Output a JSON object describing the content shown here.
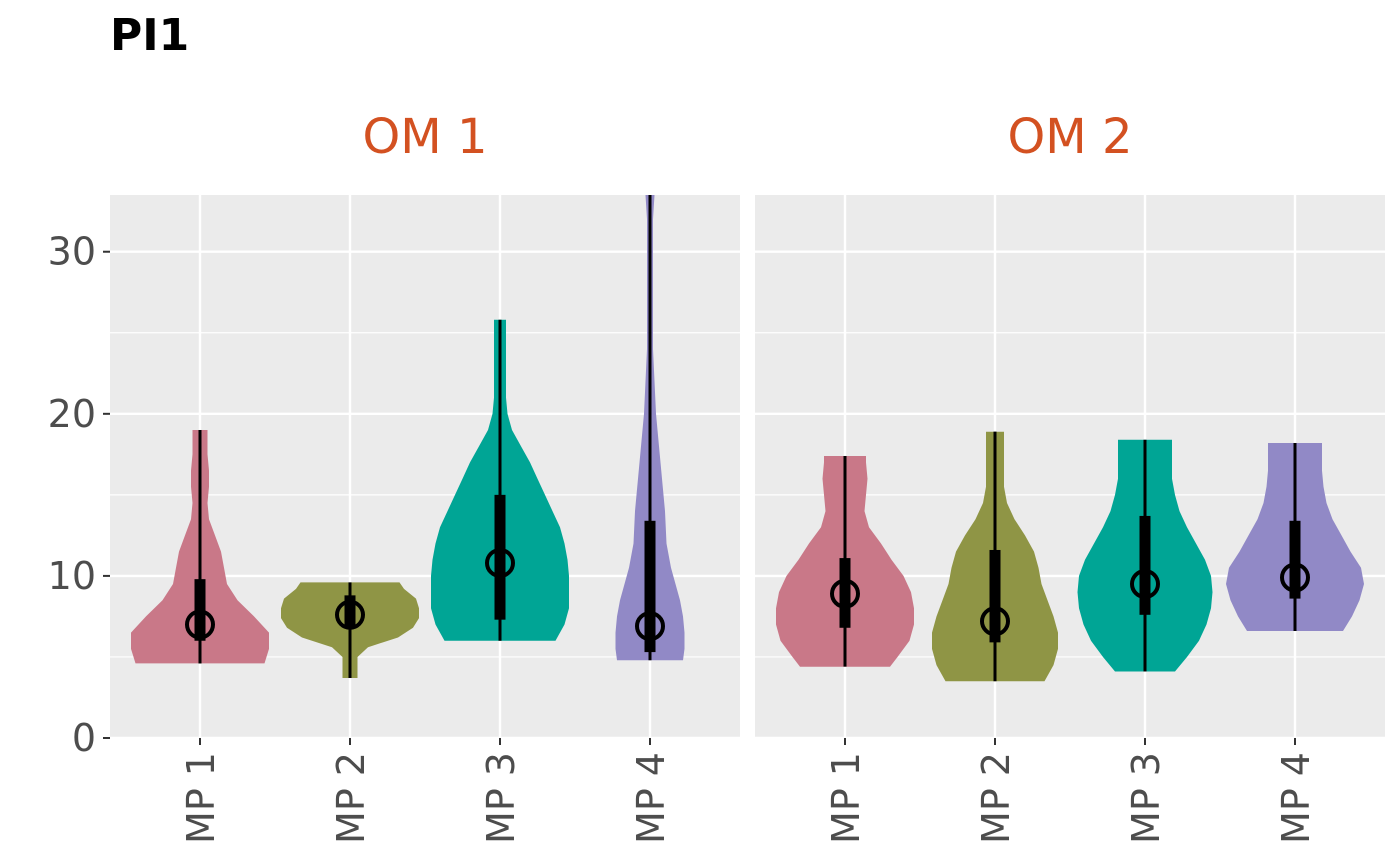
{
  "chart_data": {
    "type": "violin",
    "title": "PI1",
    "xlabel": "",
    "ylabel": "",
    "ylim": [
      0,
      33.5
    ],
    "yticks": [
      0,
      10,
      20,
      30
    ],
    "grid": true,
    "categories": [
      "MP 1",
      "MP 2",
      "MP 3",
      "MP 4"
    ],
    "colors": {
      "MP 1": "#c97888",
      "MP 2": "#8f9545",
      "MP 3": "#00a595",
      "MP 4": "#9189c6",
      "strip_text": "#d35121",
      "panel_bg": "#ebebeb"
    },
    "panels": [
      {
        "name": "OM 1",
        "violins": [
          {
            "category": "MP 1",
            "min": 4.6,
            "max": 19.0,
            "q1": 6.0,
            "median": 7.0,
            "q3": 9.8,
            "profile": [
              [
                4.6,
                4.3
              ],
              [
                5.5,
                4.6
              ],
              [
                6.5,
                4.6
              ],
              [
                7.5,
                3.6
              ],
              [
                8.5,
                2.5
              ],
              [
                9.5,
                1.8
              ],
              [
                10.5,
                1.6
              ],
              [
                11.5,
                1.4
              ],
              [
                12.5,
                1.0
              ],
              [
                13.5,
                0.6
              ],
              [
                14.5,
                0.5
              ],
              [
                15.5,
                0.6
              ],
              [
                16.5,
                0.6
              ],
              [
                17.5,
                0.5
              ],
              [
                18.5,
                0.5
              ],
              [
                19.0,
                0.5
              ]
            ]
          },
          {
            "category": "MP 2",
            "min": 3.7,
            "max": 9.6,
            "q1": 6.8,
            "median": 7.6,
            "q3": 8.8,
            "profile": [
              [
                3.7,
                0.5
              ],
              [
                4.4,
                0.5
              ],
              [
                5.0,
                0.5
              ],
              [
                5.6,
                1.2
              ],
              [
                6.2,
                3.2
              ],
              [
                6.8,
                4.2
              ],
              [
                7.4,
                4.6
              ],
              [
                8.0,
                4.6
              ],
              [
                8.6,
                4.4
              ],
              [
                9.2,
                3.6
              ],
              [
                9.6,
                3.3
              ]
            ]
          },
          {
            "category": "MP 3",
            "min": 6.0,
            "max": 25.8,
            "q1": 7.3,
            "median": 10.8,
            "q3": 15.0,
            "profile": [
              [
                6.0,
                3.7
              ],
              [
                7.0,
                4.3
              ],
              [
                8.0,
                4.6
              ],
              [
                9.0,
                4.6
              ],
              [
                10.0,
                4.6
              ],
              [
                11.0,
                4.5
              ],
              [
                12.0,
                4.3
              ],
              [
                13.0,
                4.0
              ],
              [
                14.0,
                3.5
              ],
              [
                15.0,
                3.0
              ],
              [
                16.0,
                2.5
              ],
              [
                17.0,
                2.0
              ],
              [
                18.0,
                1.4
              ],
              [
                19.0,
                0.8
              ],
              [
                20.0,
                0.5
              ],
              [
                21.0,
                0.4
              ],
              [
                22.0,
                0.4
              ],
              [
                23.0,
                0.4
              ],
              [
                24.0,
                0.4
              ],
              [
                25.0,
                0.4
              ],
              [
                25.8,
                0.4
              ]
            ]
          },
          {
            "category": "MP 4",
            "min": 4.8,
            "max": 33.5,
            "q1": 5.3,
            "median": 6.9,
            "q3": 13.4,
            "profile": [
              [
                4.8,
                2.2
              ],
              [
                5.5,
                2.3
              ],
              [
                6.5,
                2.3
              ],
              [
                7.5,
                2.2
              ],
              [
                8.5,
                2.0
              ],
              [
                9.5,
                1.7
              ],
              [
                10.5,
                1.4
              ],
              [
                12.0,
                1.1
              ],
              [
                14.0,
                1.0
              ],
              [
                16.0,
                0.8
              ],
              [
                18.0,
                0.6
              ],
              [
                20.0,
                0.4
              ],
              [
                22.0,
                0.3
              ],
              [
                24.0,
                0.2
              ],
              [
                26.0,
                0.2
              ],
              [
                28.0,
                0.2
              ],
              [
                30.0,
                0.2
              ],
              [
                32.0,
                0.2
              ],
              [
                33.5,
                0.3
              ]
            ]
          }
        ]
      },
      {
        "name": "OM 2",
        "violins": [
          {
            "category": "MP 1",
            "min": 4.4,
            "max": 17.4,
            "q1": 6.8,
            "median": 8.9,
            "q3": 11.1,
            "profile": [
              [
                4.4,
                3.0
              ],
              [
                5.0,
                3.5
              ],
              [
                6.0,
                4.3
              ],
              [
                7.0,
                4.6
              ],
              [
                8.0,
                4.6
              ],
              [
                9.0,
                4.4
              ],
              [
                10.0,
                3.9
              ],
              [
                11.0,
                3.1
              ],
              [
                12.0,
                2.4
              ],
              [
                13.0,
                1.6
              ],
              [
                14.0,
                1.3
              ],
              [
                15.0,
                1.4
              ],
              [
                16.0,
                1.5
              ],
              [
                17.0,
                1.4
              ],
              [
                17.4,
                1.4
              ]
            ]
          },
          {
            "category": "MP 2",
            "min": 3.5,
            "max": 18.9,
            "q1": 5.9,
            "median": 7.2,
            "q3": 11.6,
            "profile": [
              [
                3.5,
                3.3
              ],
              [
                4.5,
                3.9
              ],
              [
                5.5,
                4.2
              ],
              [
                6.5,
                4.2
              ],
              [
                7.5,
                3.9
              ],
              [
                8.5,
                3.5
              ],
              [
                9.5,
                3.1
              ],
              [
                10.5,
                2.9
              ],
              [
                11.5,
                2.6
              ],
              [
                12.5,
                2.0
              ],
              [
                13.5,
                1.3
              ],
              [
                14.5,
                0.8
              ],
              [
                15.5,
                0.6
              ],
              [
                16.5,
                0.6
              ],
              [
                17.5,
                0.6
              ],
              [
                18.5,
                0.6
              ],
              [
                18.9,
                0.6
              ]
            ]
          },
          {
            "category": "MP 3",
            "min": 4.1,
            "max": 18.4,
            "q1": 7.6,
            "median": 9.5,
            "q3": 13.7,
            "profile": [
              [
                4.1,
                2.0
              ],
              [
                5.0,
                2.8
              ],
              [
                6.0,
                3.6
              ],
              [
                7.0,
                4.1
              ],
              [
                8.0,
                4.4
              ],
              [
                9.0,
                4.5
              ],
              [
                10.0,
                4.4
              ],
              [
                11.0,
                4.0
              ],
              [
                12.0,
                3.4
              ],
              [
                13.0,
                2.8
              ],
              [
                14.0,
                2.3
              ],
              [
                15.0,
                2.0
              ],
              [
                16.0,
                1.8
              ],
              [
                17.0,
                1.8
              ],
              [
                18.0,
                1.8
              ],
              [
                18.4,
                1.8
              ]
            ]
          },
          {
            "category": "MP 4",
            "min": 6.6,
            "max": 18.2,
            "q1": 8.6,
            "median": 9.9,
            "q3": 13.4,
            "profile": [
              [
                6.6,
                3.2
              ],
              [
                7.5,
                3.8
              ],
              [
                8.5,
                4.3
              ],
              [
                9.5,
                4.6
              ],
              [
                10.5,
                4.4
              ],
              [
                11.5,
                3.7
              ],
              [
                12.5,
                3.1
              ],
              [
                13.5,
                2.5
              ],
              [
                14.5,
                2.1
              ],
              [
                15.5,
                1.9
              ],
              [
                16.5,
                1.8
              ],
              [
                17.5,
                1.8
              ],
              [
                18.2,
                1.8
              ]
            ]
          }
        ]
      }
    ]
  }
}
